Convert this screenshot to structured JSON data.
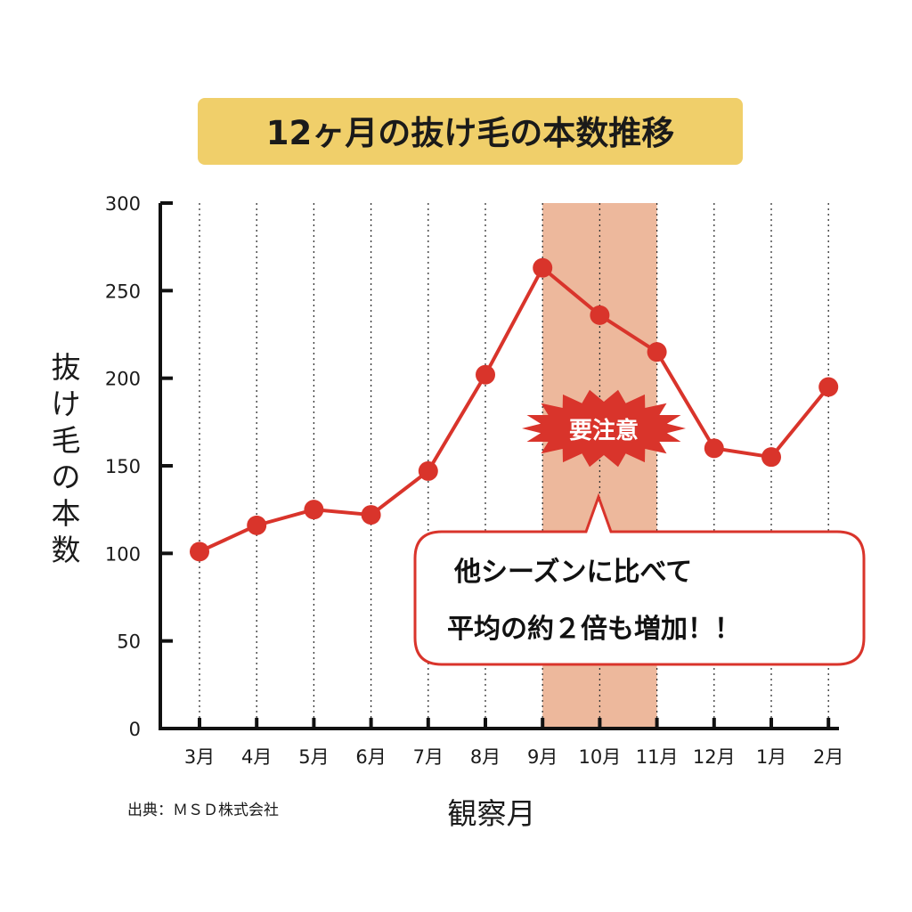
{
  "chart_data": {
    "type": "line",
    "title": "12ヶ月の抜け毛の本数推移",
    "xlabel": "観察月",
    "ylabel": "抜け毛の本数",
    "categories": [
      "3月",
      "4月",
      "5月",
      "6月",
      "7月",
      "8月",
      "9月",
      "10月",
      "11月",
      "12月",
      "1月",
      "2月"
    ],
    "series": [
      {
        "values": [
          101,
          116,
          125,
          122,
          147,
          202,
          263,
          236,
          215,
          160,
          155,
          195
        ]
      }
    ],
    "ylim": [
      0,
      300
    ],
    "yticks": [
      0,
      50,
      100,
      150,
      200,
      250,
      300
    ],
    "grid": "vertical-dotted",
    "highlight": {
      "from": "9月",
      "to": "11月",
      "color": "#edb89c"
    },
    "badge": "要注意",
    "callout": {
      "line1": "他シーズンに比べて",
      "line2": "平均の約２倍も増加！！"
    },
    "source": "出典：ＭＳＤ株式会社",
    "colors": {
      "line": "#d9342b",
      "title_bg": "#f0cf6a",
      "highlight": "#edb89c",
      "axis": "#111111"
    }
  }
}
